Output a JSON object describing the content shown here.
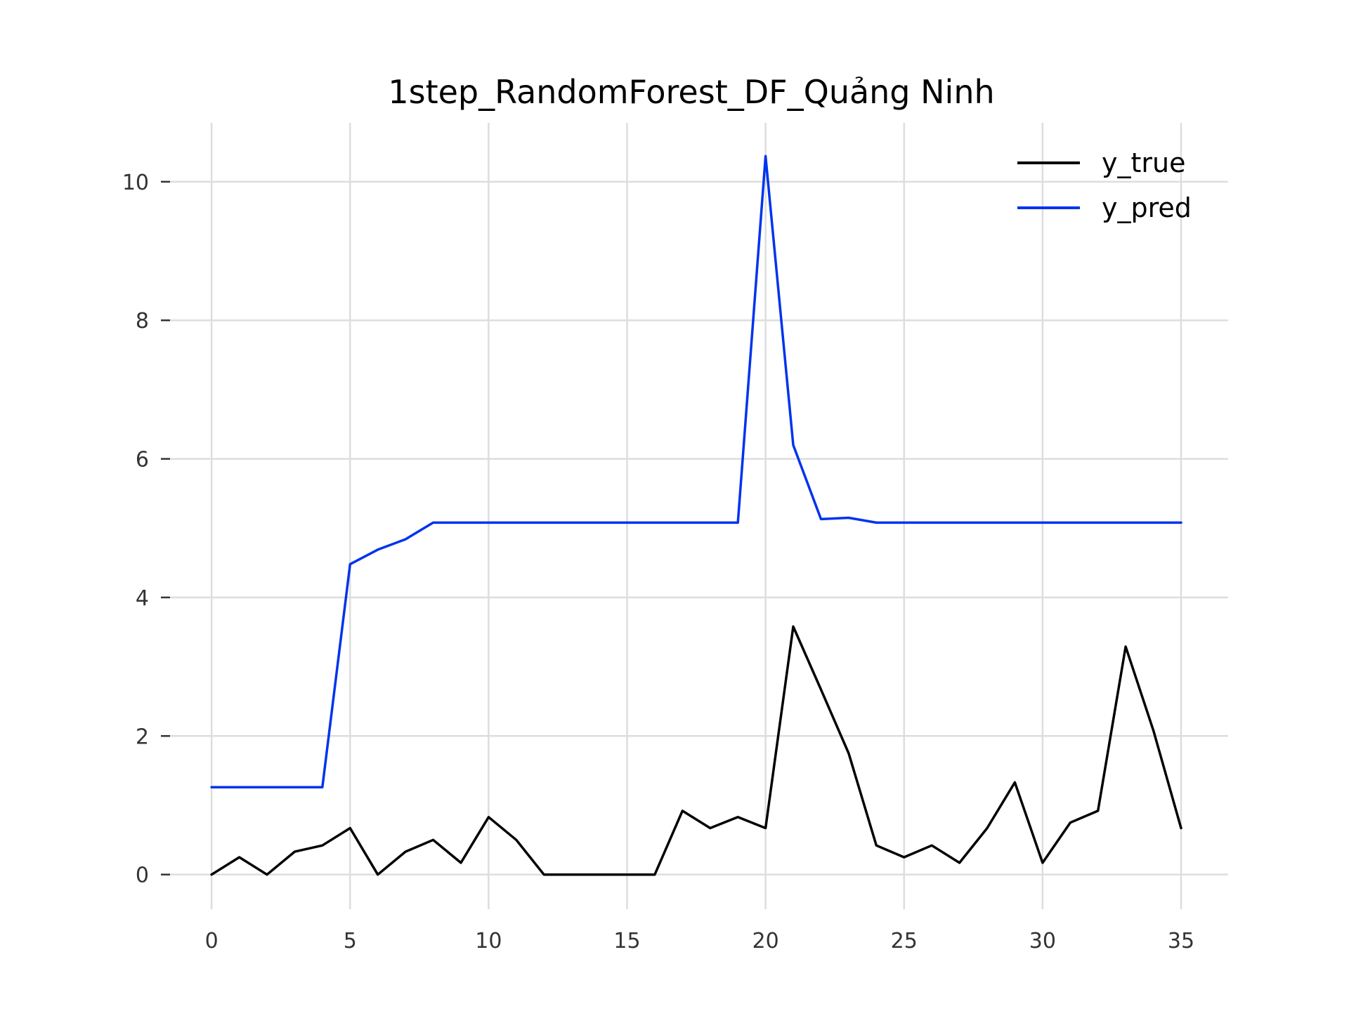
{
  "chart_data": {
    "type": "line",
    "title": "1step_RandomForest_DF_Quảng Ninh",
    "xlabel": "",
    "ylabel": "",
    "xlim": [
      -1.5,
      36.7
    ],
    "ylim": [
      -0.5,
      10.85
    ],
    "x_ticks": [
      0,
      5,
      10,
      15,
      20,
      25,
      30,
      35
    ],
    "y_ticks": [
      0,
      2,
      4,
      6,
      8,
      10
    ],
    "grid": true,
    "legend_position": "top-right",
    "x": [
      0,
      1,
      2,
      3,
      4,
      5,
      6,
      7,
      8,
      9,
      10,
      11,
      12,
      13,
      14,
      15,
      16,
      17,
      18,
      19,
      20,
      21,
      22,
      23,
      24,
      25,
      26,
      27,
      28,
      29,
      30,
      31,
      32,
      33,
      34,
      35
    ],
    "series": [
      {
        "name": "y_true",
        "color": "#000000",
        "values": [
          0.0,
          0.25,
          0.0,
          0.33,
          0.42,
          0.67,
          0.0,
          0.33,
          0.5,
          0.17,
          0.83,
          0.5,
          0.0,
          0.0,
          0.0,
          0.0,
          0.0,
          0.92,
          0.67,
          0.83,
          0.67,
          3.58,
          2.67,
          1.75,
          0.42,
          0.25,
          0.42,
          0.17,
          0.67,
          1.33,
          0.17,
          0.75,
          0.92,
          3.29,
          2.08,
          0.67
        ]
      },
      {
        "name": "y_pred",
        "color": "#0033ee",
        "values": [
          1.26,
          1.26,
          1.26,
          1.26,
          1.26,
          4.48,
          4.69,
          4.84,
          5.08,
          5.08,
          5.08,
          5.08,
          5.08,
          5.08,
          5.08,
          5.08,
          5.08,
          5.08,
          5.08,
          5.08,
          10.37,
          6.2,
          5.13,
          5.15,
          5.08,
          5.08,
          5.08,
          5.08,
          5.08,
          5.08,
          5.08,
          5.08,
          5.08,
          5.08,
          5.08,
          5.08
        ]
      }
    ]
  }
}
